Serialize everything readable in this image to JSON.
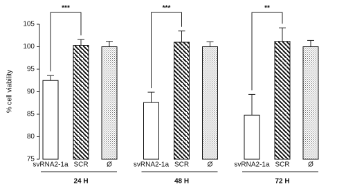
{
  "chart_data": {
    "type": "bar",
    "y_label": "% cell viability",
    "groups": [
      "24 H",
      "48 H",
      "72 H"
    ],
    "ylim": [
      75,
      105
    ],
    "yticks": [
      75,
      80,
      85,
      90,
      95,
      100,
      105
    ],
    "series": [
      {
        "name": "svRNA2-1a",
        "pattern": "none",
        "values": [
          92.5,
          87.6,
          84.8
        ],
        "errors": [
          1.1,
          2.3,
          4.6
        ]
      },
      {
        "name": "SCR",
        "pattern": "hatch",
        "values": [
          100.3,
          101,
          101.2
        ],
        "errors": [
          1.3,
          2.5,
          3
        ]
      },
      {
        "name": "Ø",
        "pattern": "dots",
        "values": [
          100,
          100,
          100
        ],
        "errors": [
          1.2,
          1.1,
          1.4
        ]
      }
    ],
    "significance": [
      "***",
      "***",
      "**"
    ]
  }
}
